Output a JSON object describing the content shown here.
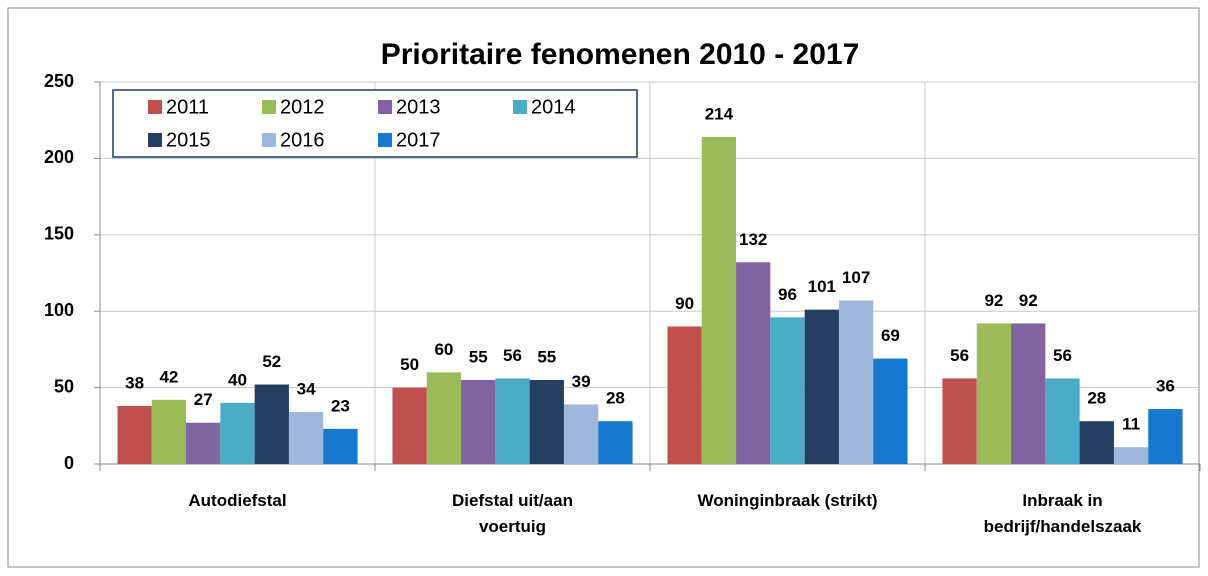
{
  "chart_data": {
    "type": "bar",
    "title": "Prioritaire fenomenen 2010 - 2017",
    "categories": [
      "Autodiefstal",
      "Diefstal uit/aan voertuig",
      "Woninginbraak (strikt)",
      "Inbraak in bedrijf/handelszaak"
    ],
    "series": [
      {
        "name": "2011",
        "color": "#c0504d",
        "values": [
          38,
          50,
          90,
          56
        ]
      },
      {
        "name": "2012",
        "color": "#9bbb59",
        "values": [
          42,
          60,
          214,
          92
        ]
      },
      {
        "name": "2013",
        "color": "#8064a2",
        "values": [
          27,
          55,
          132,
          92
        ]
      },
      {
        "name": "2014",
        "color": "#4bacc6",
        "values": [
          40,
          56,
          96,
          56
        ]
      },
      {
        "name": "2015",
        "color": "#243f60",
        "values": [
          52,
          55,
          101,
          28
        ]
      },
      {
        "name": "2016",
        "color": "#9fb6dd",
        "values": [
          34,
          39,
          107,
          11
        ]
      },
      {
        "name": "2017",
        "color": "#1579d0",
        "values": [
          23,
          28,
          69,
          36
        ]
      }
    ],
    "ylim": [
      0,
      250
    ],
    "yticks": [
      0,
      50,
      100,
      150,
      200,
      250
    ],
    "grid": true,
    "legend": "top-left"
  }
}
